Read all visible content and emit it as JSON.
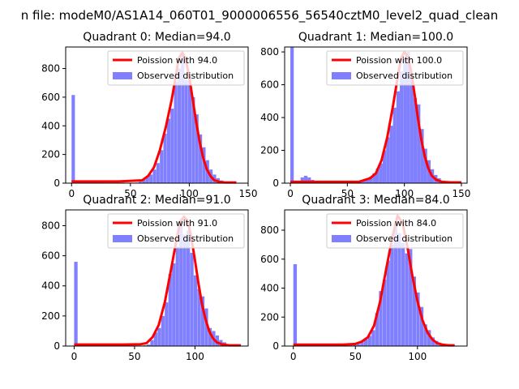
{
  "figure_title": "n file: modeM0/AS1A14_060T01_9000006556_56540cztM0_level2_quad_clean",
  "colors": {
    "poisson": "#ff0000",
    "observed": "#8080ff",
    "axis": "#000000"
  },
  "legend_labels": {
    "observed": "Observed distribution"
  },
  "chart_data": [
    {
      "type": "bar+line",
      "title": "Quadrant 0: Median=94.0",
      "median": 94,
      "poisson_label": "Poission with 94.0",
      "xlim": [
        -5,
        150
      ],
      "ylim": [
        0,
        950
      ],
      "xticks": [
        0,
        50,
        100,
        150
      ],
      "xtick_labels": [
        "0",
        "50",
        "100",
        "150"
      ],
      "yticks": [
        0,
        200,
        400,
        600,
        800
      ],
      "ytick_labels": [
        "0",
        "200",
        "400",
        "600",
        "800"
      ],
      "bin_width": 2.85,
      "bins": [
        [
          0,
          615
        ],
        [
          3,
          10
        ],
        [
          6,
          8
        ],
        [
          9,
          8
        ],
        [
          12,
          8
        ],
        [
          15,
          10
        ],
        [
          18,
          8
        ],
        [
          21,
          5
        ],
        [
          24,
          5
        ],
        [
          27,
          4
        ],
        [
          30,
          4
        ],
        [
          33,
          4
        ],
        [
          36,
          4
        ],
        [
          39,
          4
        ],
        [
          42,
          4
        ],
        [
          45,
          3
        ],
        [
          48,
          3
        ],
        [
          51,
          3
        ],
        [
          54,
          4
        ],
        [
          57,
          10
        ],
        [
          60,
          25
        ],
        [
          63,
          45
        ],
        [
          66,
          60
        ],
        [
          69,
          95
        ],
        [
          72,
          140
        ],
        [
          75,
          230
        ],
        [
          78,
          345
        ],
        [
          81,
          450
        ],
        [
          84,
          520
        ],
        [
          87,
          710
        ],
        [
          90,
          800
        ],
        [
          93,
          890
        ],
        [
          96,
          720
        ],
        [
          99,
          720
        ],
        [
          102,
          600
        ],
        [
          105,
          480
        ],
        [
          108,
          340
        ],
        [
          111,
          250
        ],
        [
          114,
          160
        ],
        [
          117,
          95
        ],
        [
          120,
          60
        ],
        [
          123,
          35
        ],
        [
          126,
          18
        ],
        [
          129,
          10
        ],
        [
          132,
          6
        ],
        [
          135,
          4
        ],
        [
          138,
          2
        ]
      ],
      "poisson_points": [
        [
          0,
          12
        ],
        [
          20,
          12
        ],
        [
          40,
          12
        ],
        [
          60,
          20
        ],
        [
          65,
          50
        ],
        [
          70,
          110
        ],
        [
          75,
          230
        ],
        [
          80,
          390
        ],
        [
          85,
          580
        ],
        [
          88,
          720
        ],
        [
          91,
          870
        ],
        [
          94,
          910
        ],
        [
          97,
          860
        ],
        [
          100,
          740
        ],
        [
          103,
          580
        ],
        [
          106,
          420
        ],
        [
          109,
          280
        ],
        [
          112,
          170
        ],
        [
          115,
          95
        ],
        [
          118,
          50
        ],
        [
          121,
          22
        ],
        [
          125,
          10
        ],
        [
          130,
          5
        ],
        [
          140,
          5
        ]
      ]
    },
    {
      "type": "bar+line",
      "title": "Quadrant 1: Median=100.0",
      "median": 100,
      "poisson_label": "Poission with 100.0",
      "xlim": [
        -5,
        155
      ],
      "ylim": [
        0,
        830
      ],
      "xticks": [
        0,
        50,
        100,
        150
      ],
      "xtick_labels": [
        "0",
        "50",
        "100",
        "150"
      ],
      "yticks": [
        0,
        200,
        400,
        600,
        800
      ],
      "ytick_labels": [
        "0",
        "200",
        "400",
        "600",
        "800"
      ],
      "bin_width": 3.0,
      "bins": [
        [
          0,
          830
        ],
        [
          3,
          5
        ],
        [
          6,
          10
        ],
        [
          9,
          35
        ],
        [
          12,
          45
        ],
        [
          15,
          35
        ],
        [
          18,
          20
        ],
        [
          21,
          8
        ],
        [
          24,
          5
        ],
        [
          27,
          4
        ],
        [
          30,
          3
        ],
        [
          33,
          3
        ],
        [
          36,
          3
        ],
        [
          39,
          3
        ],
        [
          42,
          3
        ],
        [
          45,
          3
        ],
        [
          48,
          3
        ],
        [
          51,
          3
        ],
        [
          54,
          4
        ],
        [
          57,
          5
        ],
        [
          60,
          8
        ],
        [
          63,
          20
        ],
        [
          66,
          30
        ],
        [
          69,
          40
        ],
        [
          72,
          60
        ],
        [
          75,
          90
        ],
        [
          78,
          120
        ],
        [
          81,
          200
        ],
        [
          84,
          280
        ],
        [
          87,
          350
        ],
        [
          90,
          460
        ],
        [
          93,
          560
        ],
        [
          96,
          680
        ],
        [
          99,
          760
        ],
        [
          102,
          800
        ],
        [
          105,
          650
        ],
        [
          108,
          520
        ],
        [
          111,
          480
        ],
        [
          114,
          330
        ],
        [
          117,
          210
        ],
        [
          120,
          140
        ],
        [
          123,
          85
        ],
        [
          126,
          50
        ],
        [
          129,
          30
        ],
        [
          132,
          15
        ],
        [
          135,
          8
        ],
        [
          138,
          3
        ]
      ],
      "poisson_points": [
        [
          0,
          8
        ],
        [
          30,
          8
        ],
        [
          60,
          8
        ],
        [
          70,
          30
        ],
        [
          75,
          60
        ],
        [
          80,
          140
        ],
        [
          85,
          280
        ],
        [
          90,
          470
        ],
        [
          94,
          640
        ],
        [
          97,
          760
        ],
        [
          100,
          800
        ],
        [
          103,
          770
        ],
        [
          106,
          680
        ],
        [
          109,
          540
        ],
        [
          112,
          390
        ],
        [
          115,
          260
        ],
        [
          118,
          160
        ],
        [
          121,
          90
        ],
        [
          124,
          45
        ],
        [
          128,
          20
        ],
        [
          133,
          8
        ],
        [
          140,
          5
        ],
        [
          150,
          5
        ]
      ]
    },
    {
      "type": "bar+line",
      "title": "Quadrant 2: Median=91.0",
      "median": 91,
      "poisson_label": "Poission with 91.0",
      "xlim": [
        -7,
        144
      ],
      "ylim": [
        0,
        905
      ],
      "xticks": [
        0,
        50,
        100
      ],
      "xtick_labels": [
        "0",
        "50",
        "100"
      ],
      "yticks": [
        0,
        200,
        400,
        600,
        800
      ],
      "ytick_labels": [
        "0",
        "200",
        "400",
        "600",
        "800"
      ],
      "bin_width": 2.85,
      "bins": [
        [
          0,
          560
        ],
        [
          3,
          3
        ],
        [
          6,
          3
        ],
        [
          9,
          3
        ],
        [
          12,
          3
        ],
        [
          15,
          3
        ],
        [
          18,
          3
        ],
        [
          21,
          3
        ],
        [
          24,
          3
        ],
        [
          27,
          3
        ],
        [
          30,
          3
        ],
        [
          33,
          3
        ],
        [
          36,
          3
        ],
        [
          39,
          3
        ],
        [
          42,
          3
        ],
        [
          45,
          3
        ],
        [
          48,
          3
        ],
        [
          51,
          3
        ],
        [
          54,
          3
        ],
        [
          57,
          5
        ],
        [
          60,
          10
        ],
        [
          63,
          40
        ],
        [
          66,
          90
        ],
        [
          69,
          120
        ],
        [
          72,
          200
        ],
        [
          75,
          290
        ],
        [
          78,
          480
        ],
        [
          81,
          550
        ],
        [
          84,
          660
        ],
        [
          87,
          840
        ],
        [
          90,
          740
        ],
        [
          93,
          770
        ],
        [
          96,
          620
        ],
        [
          99,
          470
        ],
        [
          102,
          380
        ],
        [
          105,
          330
        ],
        [
          108,
          250
        ],
        [
          111,
          120
        ],
        [
          114,
          100
        ],
        [
          117,
          70
        ],
        [
          120,
          40
        ],
        [
          123,
          25
        ],
        [
          126,
          12
        ],
        [
          129,
          6
        ],
        [
          132,
          3
        ]
      ],
      "poisson_points": [
        [
          0,
          10
        ],
        [
          20,
          10
        ],
        [
          40,
          10
        ],
        [
          55,
          12
        ],
        [
          60,
          20
        ],
        [
          65,
          60
        ],
        [
          70,
          140
        ],
        [
          75,
          290
        ],
        [
          80,
          500
        ],
        [
          85,
          720
        ],
        [
          88,
          830
        ],
        [
          91,
          860
        ],
        [
          94,
          830
        ],
        [
          97,
          720
        ],
        [
          100,
          570
        ],
        [
          103,
          410
        ],
        [
          106,
          270
        ],
        [
          109,
          170
        ],
        [
          112,
          95
        ],
        [
          115,
          50
        ],
        [
          118,
          25
        ],
        [
          122,
          12
        ],
        [
          128,
          5
        ],
        [
          138,
          5
        ]
      ]
    },
    {
      "type": "bar+line",
      "title": "Quadrant 3: Median=84.0",
      "median": 84,
      "poisson_label": "Poission with 84.0",
      "xlim": [
        -7,
        140
      ],
      "ylim": [
        0,
        940
      ],
      "xticks": [
        0,
        50,
        100
      ],
      "xtick_labels": [
        "0",
        "50",
        "100"
      ],
      "yticks": [
        0,
        200,
        400,
        600,
        800
      ],
      "ytick_labels": [
        "0",
        "200",
        "400",
        "600",
        "800"
      ],
      "bin_width": 2.85,
      "bins": [
        [
          0,
          565
        ],
        [
          3,
          3
        ],
        [
          6,
          3
        ],
        [
          9,
          3
        ],
        [
          12,
          3
        ],
        [
          15,
          3
        ],
        [
          18,
          3
        ],
        [
          21,
          3
        ],
        [
          24,
          3
        ],
        [
          27,
          3
        ],
        [
          30,
          3
        ],
        [
          33,
          3
        ],
        [
          36,
          3
        ],
        [
          39,
          3
        ],
        [
          42,
          3
        ],
        [
          45,
          5
        ],
        [
          48,
          8
        ],
        [
          51,
          15
        ],
        [
          54,
          30
        ],
        [
          57,
          45
        ],
        [
          60,
          70
        ],
        [
          63,
          110
        ],
        [
          66,
          230
        ],
        [
          69,
          380
        ],
        [
          72,
          460
        ],
        [
          75,
          590
        ],
        [
          78,
          700
        ],
        [
          81,
          850
        ],
        [
          84,
          780
        ],
        [
          87,
          710
        ],
        [
          90,
          640
        ],
        [
          93,
          670
        ],
        [
          96,
          480
        ],
        [
          99,
          370
        ],
        [
          102,
          270
        ],
        [
          105,
          150
        ],
        [
          108,
          110
        ],
        [
          111,
          60
        ],
        [
          114,
          35
        ],
        [
          117,
          15
        ],
        [
          120,
          8
        ],
        [
          123,
          3
        ]
      ],
      "poisson_points": [
        [
          0,
          10
        ],
        [
          20,
          10
        ],
        [
          40,
          10
        ],
        [
          50,
          15
        ],
        [
          55,
          30
        ],
        [
          60,
          60
        ],
        [
          65,
          140
        ],
        [
          70,
          310
        ],
        [
          75,
          540
        ],
        [
          80,
          760
        ],
        [
          84,
          900
        ],
        [
          88,
          850
        ],
        [
          92,
          680
        ],
        [
          96,
          480
        ],
        [
          100,
          310
        ],
        [
          104,
          180
        ],
        [
          108,
          95
        ],
        [
          112,
          45
        ],
        [
          116,
          20
        ],
        [
          120,
          10
        ],
        [
          125,
          5
        ],
        [
          130,
          5
        ]
      ]
    }
  ]
}
